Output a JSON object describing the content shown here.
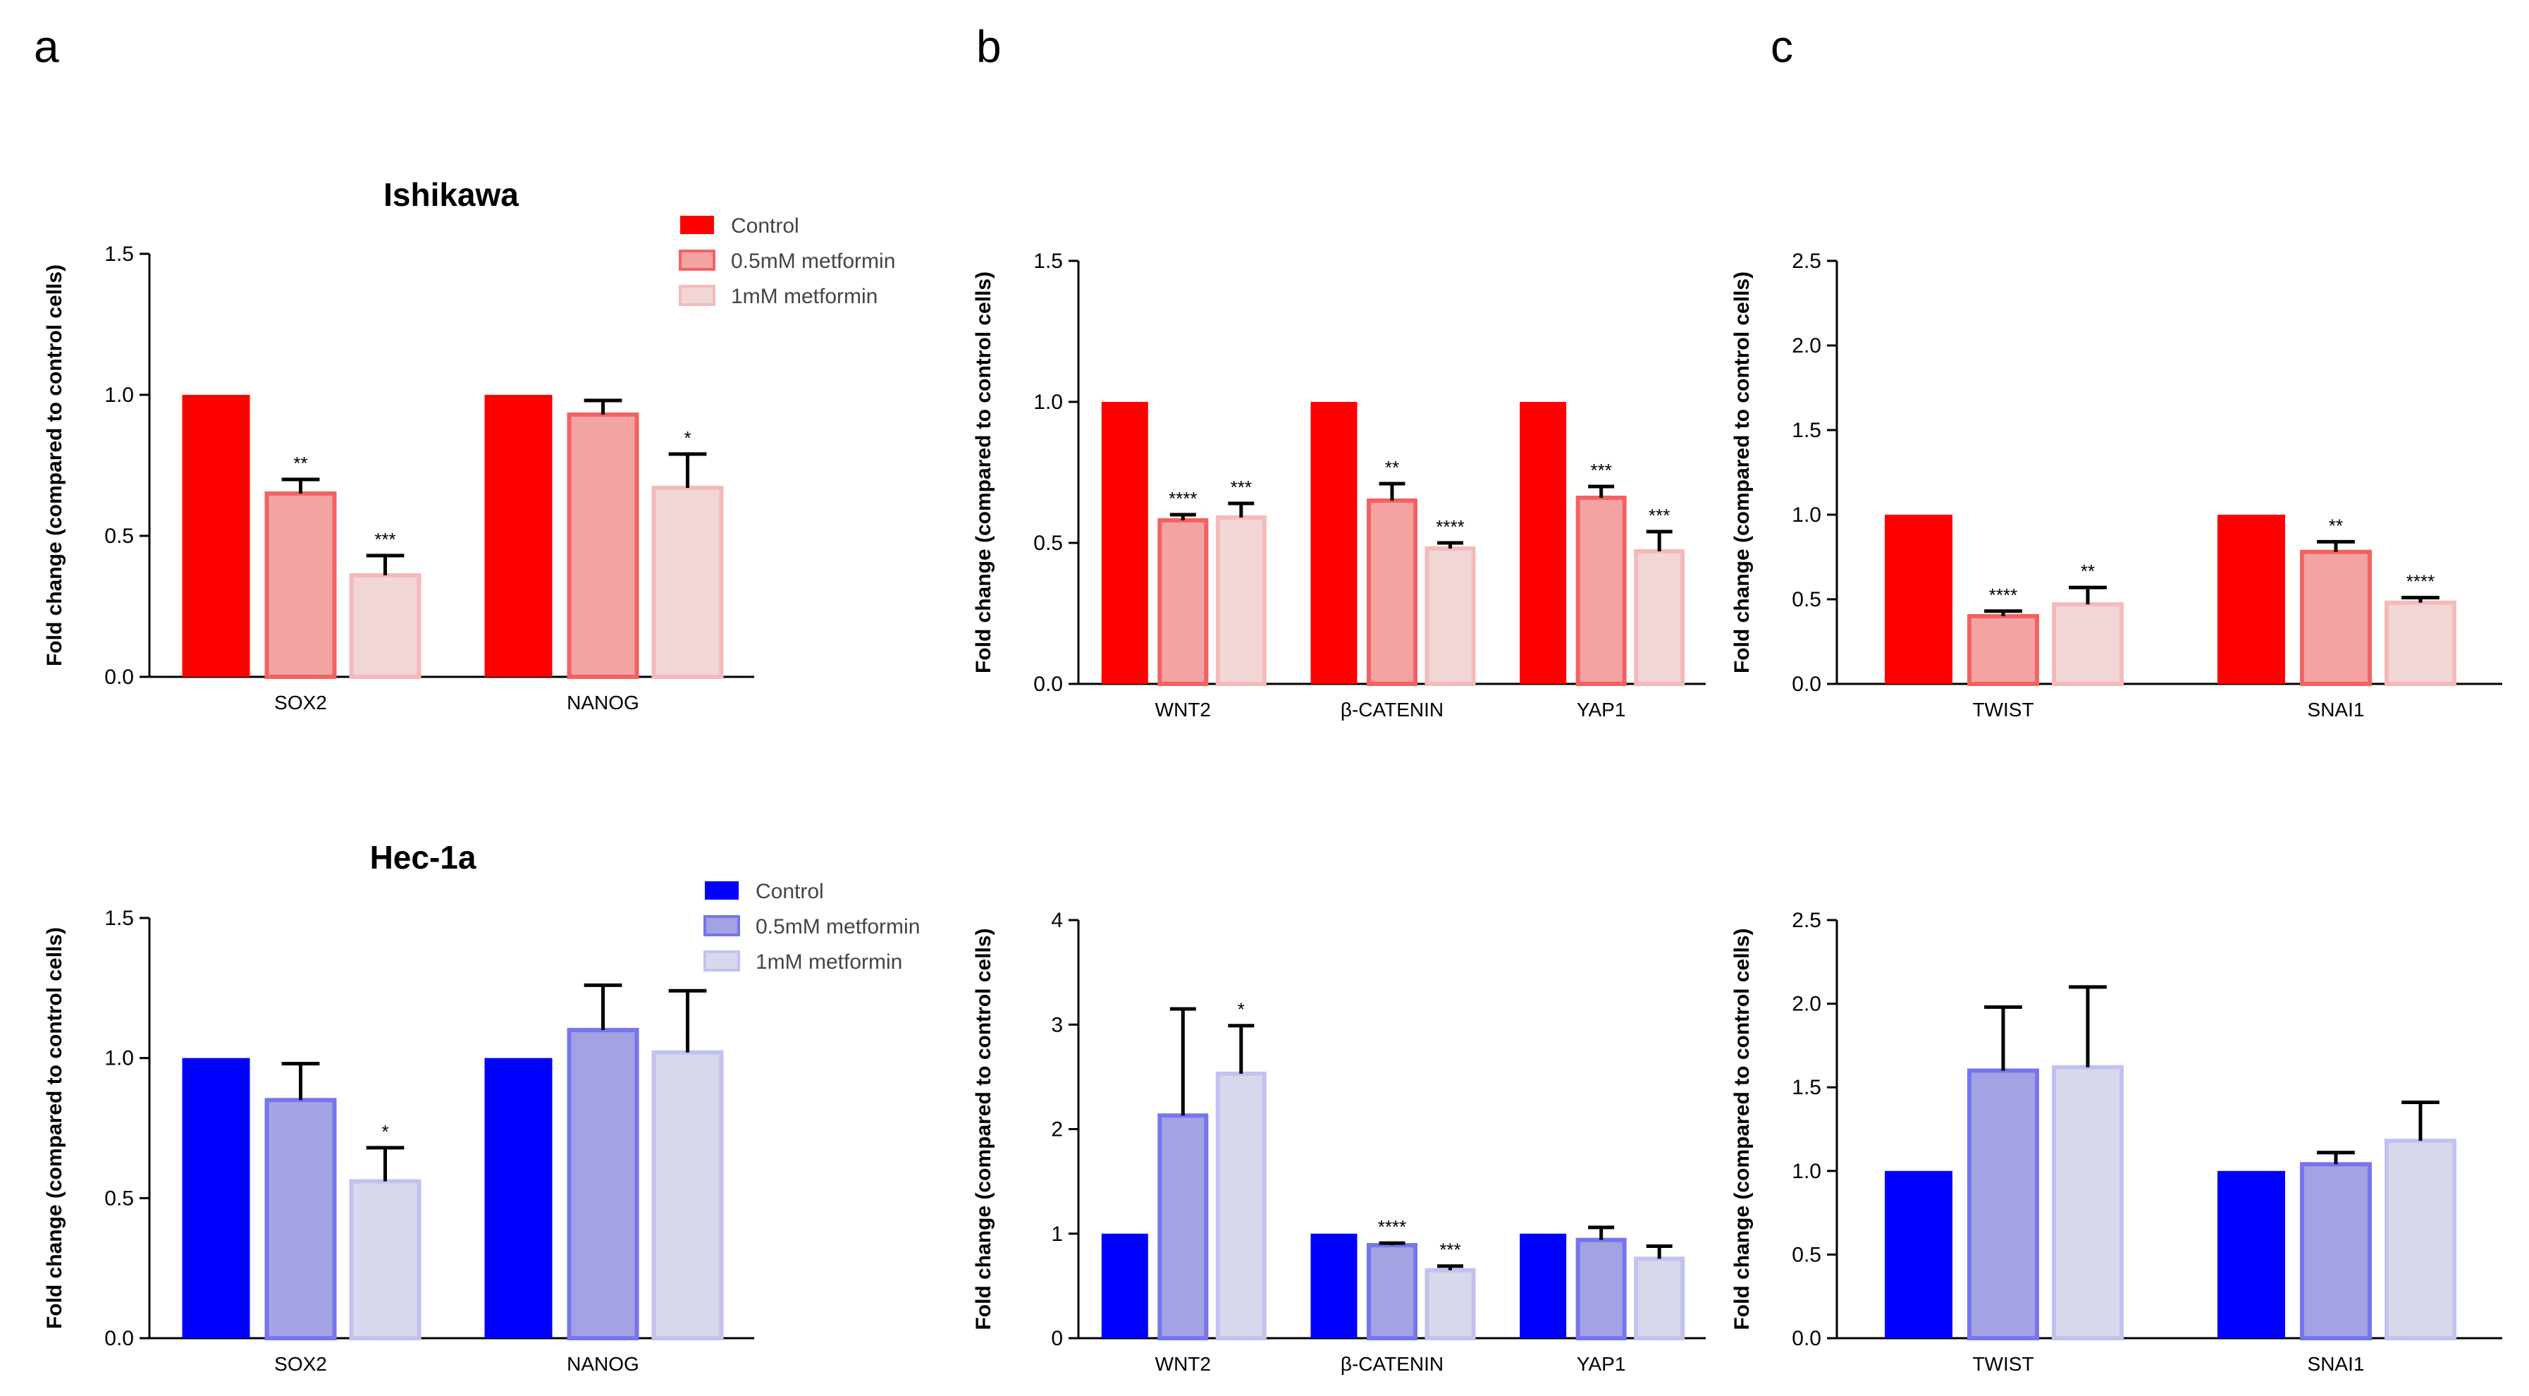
{
  "figure": {
    "panel_letters": [
      "a",
      "b",
      "c"
    ],
    "rows": [
      {
        "cell_line": "Ishikawa",
        "palette": [
          "#ff0000",
          "#f4a3a3",
          "#f2d6d6"
        ],
        "edge": [
          "#ff0000",
          "#f26262",
          "#f4baba"
        ]
      },
      {
        "cell_line": "Hec-1a",
        "palette": [
          "#0000ff",
          "#a3a3e3",
          "#d8d8ec"
        ],
        "edge": [
          "#0000ff",
          "#7575ee",
          "#c2c2f0"
        ]
      }
    ],
    "legend": [
      "Control",
      "0.5mM metformin",
      "1mM metformin"
    ]
  },
  "chart_data": [
    {
      "id": "a-ishikawa",
      "type": "bar",
      "title": "Ishikawa",
      "ylabel": "Fold change (compared to control cells)",
      "ylim": [
        0,
        1.5
      ],
      "yticks": [
        "0.0",
        "0.5",
        "1.0",
        "1.5"
      ],
      "categories": [
        "SOX2",
        "NANOG"
      ],
      "series": [
        {
          "name": "Control",
          "values": [
            1.0,
            1.0
          ],
          "errors": [
            0,
            0
          ],
          "sig": [
            "",
            ""
          ]
        },
        {
          "name": "0.5mM metformin",
          "values": [
            0.65,
            0.93
          ],
          "errors": [
            0.05,
            0.05
          ],
          "sig": [
            "**",
            ""
          ]
        },
        {
          "name": "1mM metformin",
          "values": [
            0.36,
            0.67
          ],
          "errors": [
            0.07,
            0.12
          ],
          "sig": [
            "***",
            "*"
          ]
        }
      ]
    },
    {
      "id": "b-ishikawa",
      "type": "bar",
      "title": "",
      "ylabel": "Fold change (compared to control cells)",
      "ylim": [
        0,
        1.5
      ],
      "yticks": [
        "0.0",
        "0.5",
        "1.0",
        "1.5"
      ],
      "categories": [
        "WNT2",
        "β-CATENIN",
        "YAP1"
      ],
      "series": [
        {
          "name": "Control",
          "values": [
            1.0,
            1.0,
            1.0
          ],
          "errors": [
            0,
            0,
            0
          ],
          "sig": [
            "",
            "",
            ""
          ]
        },
        {
          "name": "0.5mM metformin",
          "values": [
            0.58,
            0.65,
            0.66
          ],
          "errors": [
            0.02,
            0.06,
            0.04
          ],
          "sig": [
            "****",
            "**",
            "***"
          ]
        },
        {
          "name": "1mM metformin",
          "values": [
            0.59,
            0.48,
            0.47
          ],
          "errors": [
            0.05,
            0.02,
            0.07
          ],
          "sig": [
            "***",
            "****",
            "***"
          ]
        }
      ]
    },
    {
      "id": "c-ishikawa",
      "type": "bar",
      "title": "",
      "ylabel": "Fold change (compared to control cells)",
      "ylim": [
        0,
        2.5
      ],
      "yticks": [
        "0.0",
        "0.5",
        "1.0",
        "1.5",
        "2.0",
        "2.5"
      ],
      "categories": [
        "TWIST",
        "SNAI1"
      ],
      "series": [
        {
          "name": "Control",
          "values": [
            1.0,
            1.0
          ],
          "errors": [
            0,
            0
          ],
          "sig": [
            "",
            ""
          ]
        },
        {
          "name": "0.5mM metformin",
          "values": [
            0.4,
            0.78
          ],
          "errors": [
            0.03,
            0.06
          ],
          "sig": [
            "****",
            "**"
          ]
        },
        {
          "name": "1mM metformin",
          "values": [
            0.47,
            0.48
          ],
          "errors": [
            0.1,
            0.03
          ],
          "sig": [
            "**",
            "****"
          ]
        }
      ]
    },
    {
      "id": "a-hec1a",
      "type": "bar",
      "title": "Hec-1a",
      "ylabel": "Fold change (compared to control cells)",
      "ylim": [
        0,
        1.5
      ],
      "yticks": [
        "0.0",
        "0.5",
        "1.0",
        "1.5"
      ],
      "categories": [
        "SOX2",
        "NANOG"
      ],
      "series": [
        {
          "name": "Control",
          "values": [
            1.0,
            1.0
          ],
          "errors": [
            0,
            0
          ],
          "sig": [
            "",
            ""
          ]
        },
        {
          "name": "0.5mM metformin",
          "values": [
            0.85,
            1.1
          ],
          "errors": [
            0.13,
            0.16
          ],
          "sig": [
            "",
            ""
          ]
        },
        {
          "name": "1mM metformin",
          "values": [
            0.56,
            1.02
          ],
          "errors": [
            0.12,
            0.22
          ],
          "sig": [
            "*",
            ""
          ]
        }
      ]
    },
    {
      "id": "b-hec1a",
      "type": "bar",
      "title": "",
      "ylabel": "Fold change (compared to control cells)",
      "ylim": [
        0,
        4
      ],
      "yticks": [
        "0",
        "1",
        "2",
        "3",
        "4"
      ],
      "categories": [
        "WNT2",
        "β-CATENIN",
        "YAP1"
      ],
      "series": [
        {
          "name": "Control",
          "values": [
            1.0,
            1.0,
            1.0
          ],
          "errors": [
            0,
            0,
            0
          ],
          "sig": [
            "",
            "",
            ""
          ]
        },
        {
          "name": "0.5mM metformin",
          "values": [
            2.13,
            0.89,
            0.94
          ],
          "errors": [
            1.02,
            0.02,
            0.12
          ],
          "sig": [
            "",
            "****",
            ""
          ]
        },
        {
          "name": "1mM metformin",
          "values": [
            2.53,
            0.65,
            0.76
          ],
          "errors": [
            0.46,
            0.04,
            0.12
          ],
          "sig": [
            "*",
            "***",
            ""
          ]
        }
      ]
    },
    {
      "id": "c-hec1a",
      "type": "bar",
      "title": "",
      "ylabel": "Fold change (compared to control cells)",
      "ylim": [
        0,
        2.5
      ],
      "yticks": [
        "0.0",
        "0.5",
        "1.0",
        "1.5",
        "2.0",
        "2.5"
      ],
      "categories": [
        "TWIST",
        "SNAI1"
      ],
      "series": [
        {
          "name": "Control",
          "values": [
            1.0,
            1.0
          ],
          "errors": [
            0,
            0
          ],
          "sig": [
            "",
            ""
          ]
        },
        {
          "name": "0.5mM metformin",
          "values": [
            1.6,
            1.04
          ],
          "errors": [
            0.38,
            0.07
          ],
          "sig": [
            "",
            ""
          ]
        },
        {
          "name": "1mM metformin",
          "values": [
            1.62,
            1.18
          ],
          "errors": [
            0.48,
            0.23
          ],
          "sig": [
            "",
            ""
          ]
        }
      ]
    }
  ]
}
